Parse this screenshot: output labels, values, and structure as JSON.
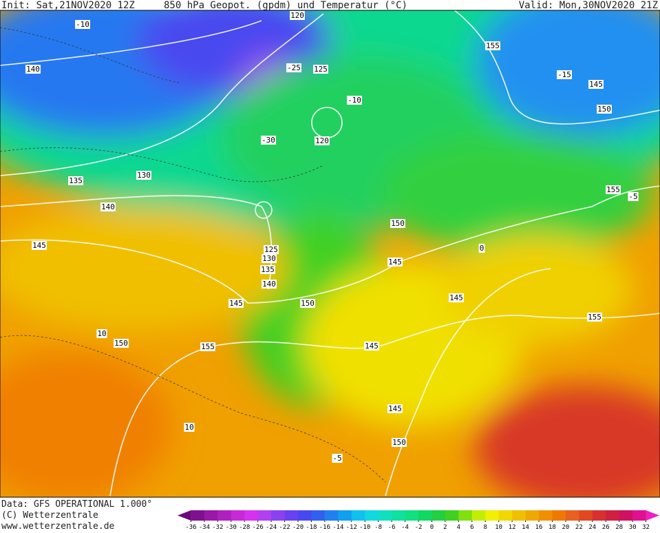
{
  "header": {
    "init": "Init: Sat,21NOV2020 12Z",
    "title": "850 hPa Geopot. (gpdm) und Temperatur (°C)",
    "valid": "Valid: Mon,30NOV2020 21Z"
  },
  "footer": {
    "data": "Data: GFS OPERATIONAL 1.000°",
    "copyright": "(C) Wetterzentrale",
    "url": "www.wetterzentrale.de"
  },
  "contour_labels": [
    "140",
    "120",
    "125",
    "120",
    "130",
    "135",
    "140",
    "145",
    "150",
    "155",
    "145",
    "150",
    "155",
    "125",
    "130",
    "135",
    "140",
    "145",
    "150",
    "145",
    "145",
    "155",
    "150",
    "155",
    "145",
    "145",
    "150",
    "-30",
    "-25",
    "-15",
    "-10",
    "-10",
    "-5",
    "0",
    "10",
    "-5",
    "10"
  ],
  "colorbar": {
    "ticks": [
      -36,
      -34,
      -32,
      -30,
      -28,
      -26,
      -24,
      -22,
      -20,
      -18,
      -16,
      -14,
      -12,
      -10,
      -8,
      -6,
      -4,
      -2,
      0,
      2,
      4,
      6,
      8,
      10,
      12,
      14,
      16,
      18,
      20,
      22,
      24,
      26,
      28,
      30,
      32
    ],
    "colors": [
      "#6a0a7a",
      "#80108f",
      "#9a18a8",
      "#b020c0",
      "#c828d8",
      "#d830ef",
      "#b040f0",
      "#8c40f0",
      "#6a40f0",
      "#4848f0",
      "#3060f0",
      "#2080f0",
      "#10a0f0",
      "#10c0f0",
      "#10d8e0",
      "#10e0c0",
      "#10e0a0",
      "#10e080",
      "#10d860",
      "#20d040",
      "#40d020",
      "#80e010",
      "#c0f000",
      "#f0f000",
      "#f0d800",
      "#f0c000",
      "#f0a800",
      "#f09000",
      "#f07800",
      "#e86020",
      "#e04820",
      "#d83030",
      "#d02040",
      "#d01060",
      "#e01090",
      "#f020c0"
    ]
  }
}
